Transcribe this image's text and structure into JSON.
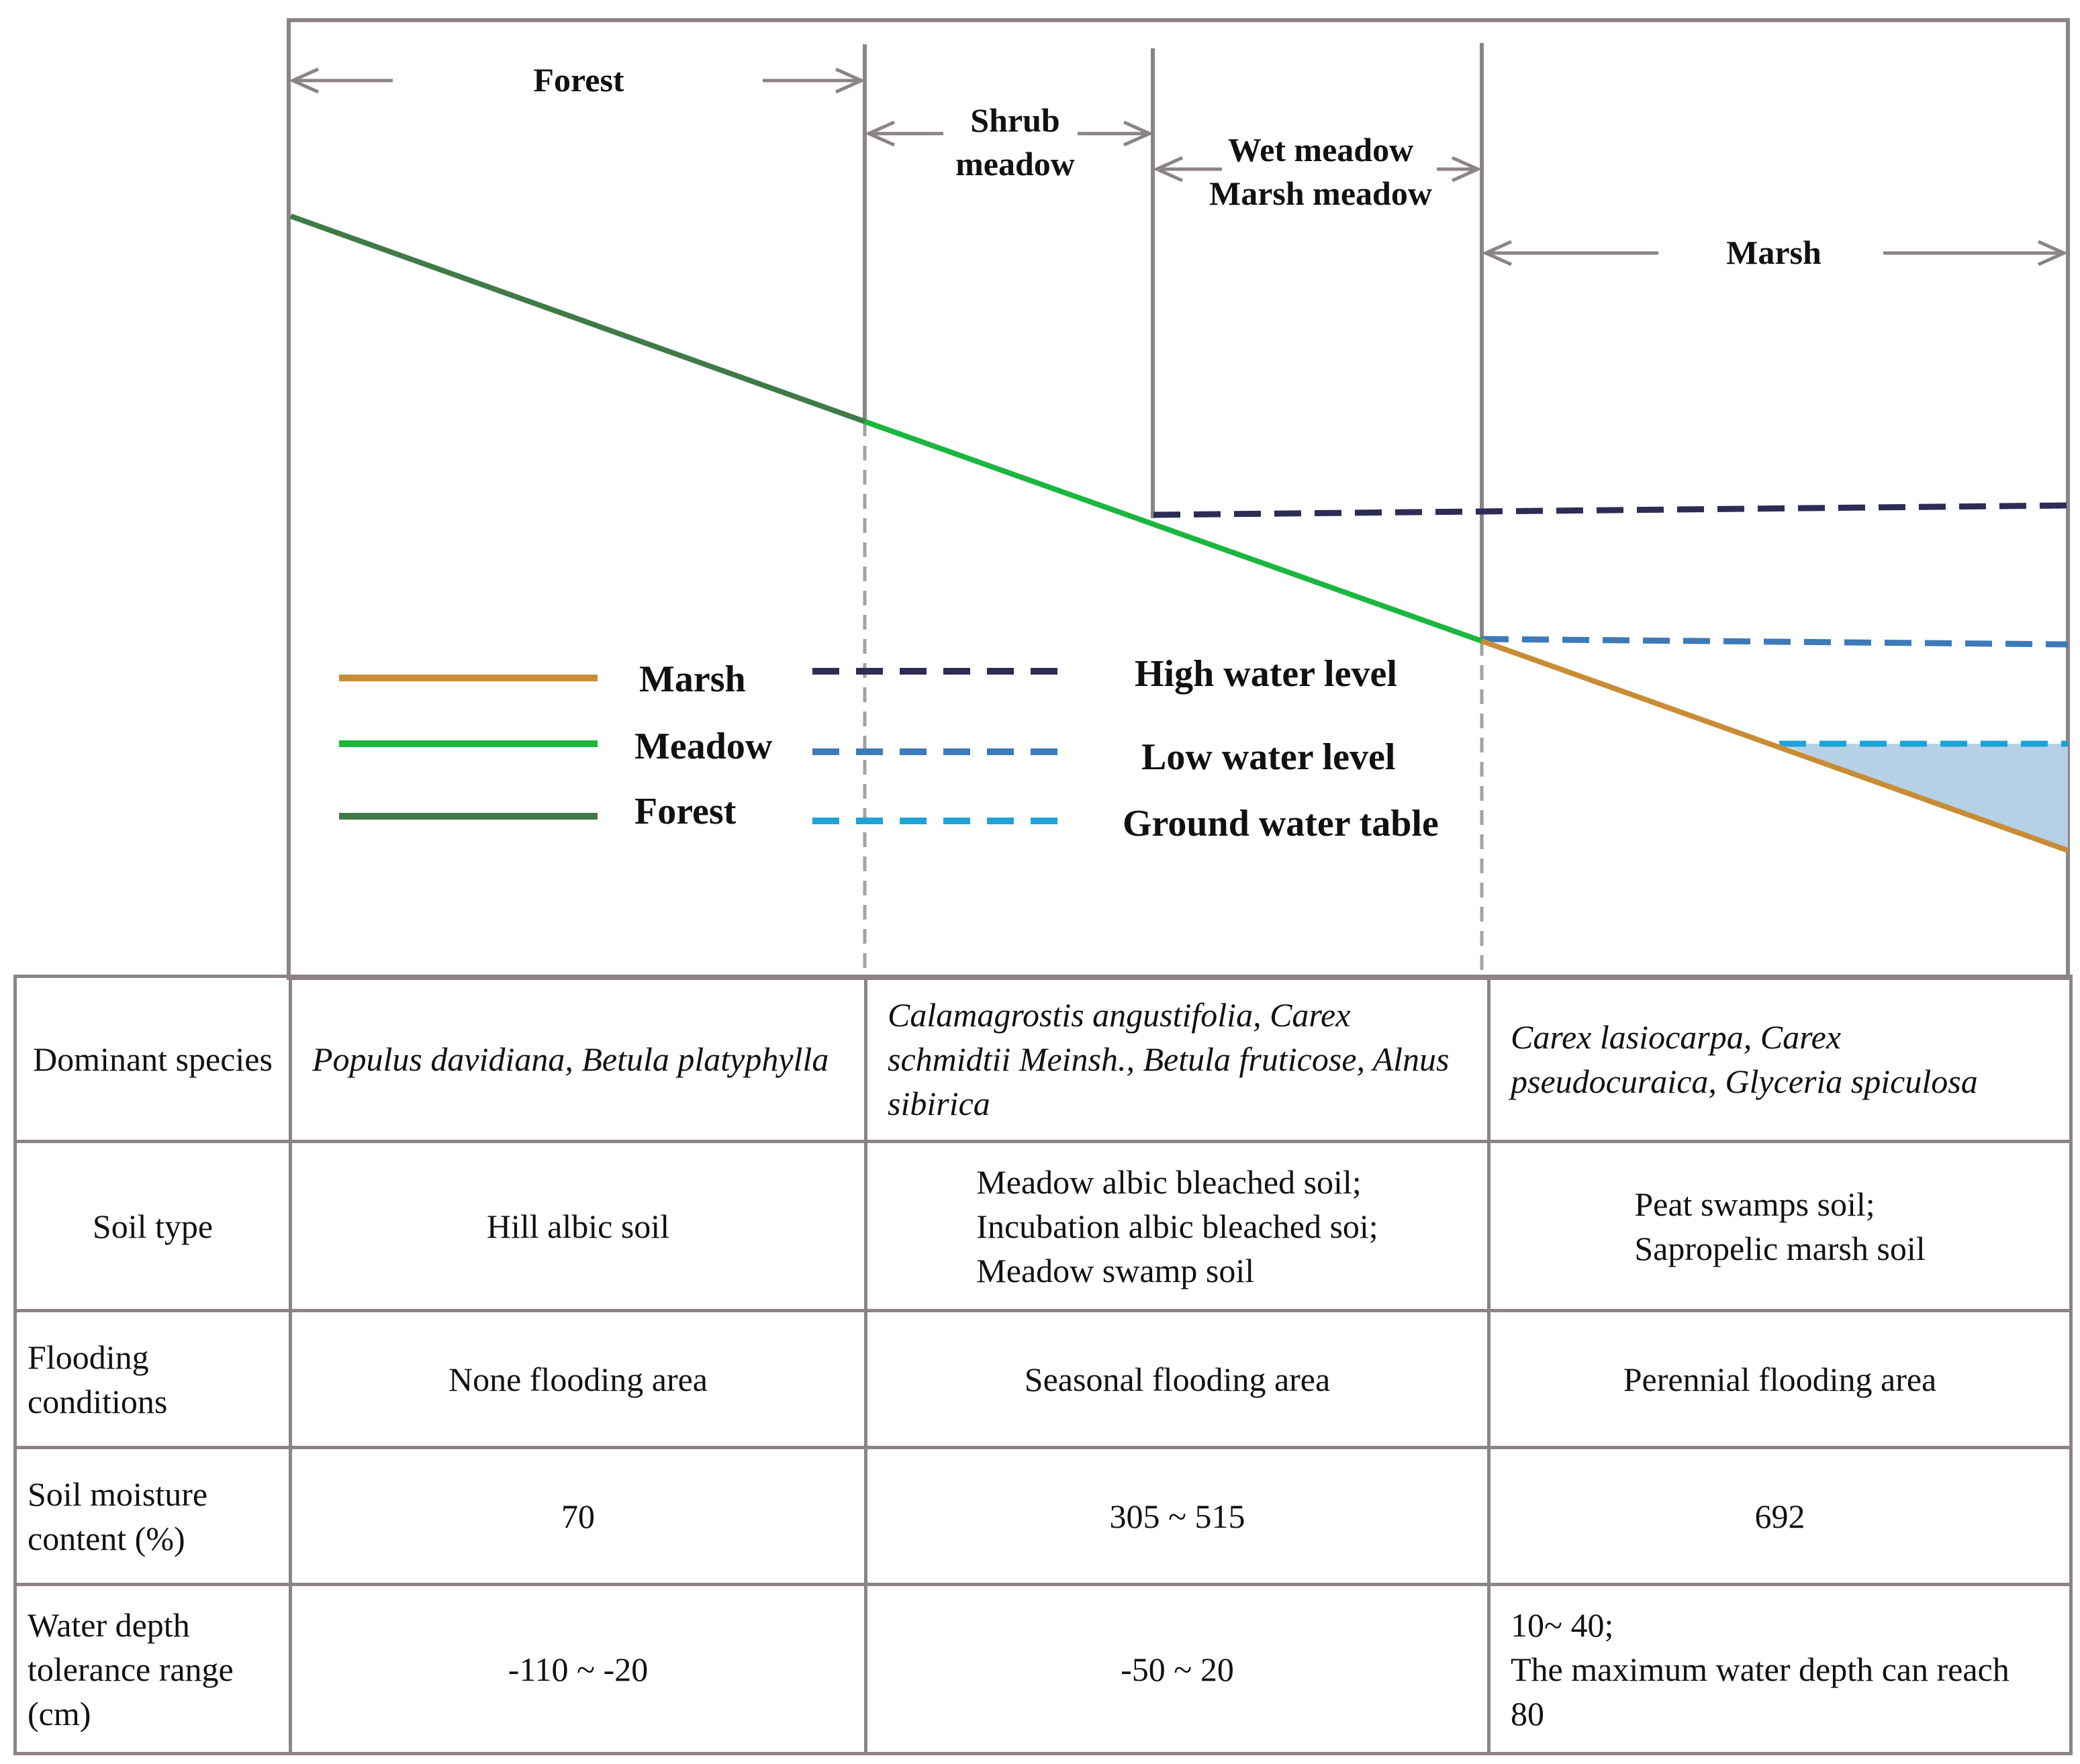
{
  "zones": {
    "forest": "Forest",
    "shrub_meadow": [
      "Shrub",
      "meadow"
    ],
    "wet_marsh_meadow": [
      "Wet meadow",
      "Marsh meadow"
    ],
    "marsh": "Marsh"
  },
  "legend": {
    "marsh": "Marsh",
    "meadow": "Meadow",
    "forest": "Forest",
    "high_water": "High water level",
    "low_water": "Low water level",
    "ground_water": "Ground water table"
  },
  "colors": {
    "frame": "#8c8384",
    "forest_line": "#3f7a47",
    "meadow_line": "#1bb63f",
    "marsh_line": "#c98c36",
    "high_water": "#2d2c55",
    "low_water": "#3e7ab8",
    "ground_water": "#1ea3d7",
    "water_fill": "#b6d1e6"
  },
  "table": {
    "rows": [
      {
        "label": "Dominant species",
        "cells": [
          "Populus davidiana, Betula platyphylla",
          "Calamagrostis angustifolia, Carex schmidtii Meinsh., Betula fruticose, Alnus sibirica",
          "Carex lasiocarpa, Carex pseudocuraica, Glyceria spiculosa"
        ]
      },
      {
        "label": "Soil type",
        "cells": [
          "Hill albic soil",
          "Meadow albic bleached soil;\nIncubation albic bleached soi;\nMeadow swamp soil",
          "Peat swamps soil;\nSapropelic marsh soil"
        ]
      },
      {
        "label": "Flooding conditions",
        "cells": [
          "None flooding area",
          "Seasonal flooding area",
          "Perennial flooding area"
        ]
      },
      {
        "label": "Soil moisture content (%)",
        "cells": [
          "70",
          "305 ~ 515",
          "692"
        ]
      },
      {
        "label": "Water depth tolerance range (cm)",
        "cells": [
          "-110 ~ -20",
          "-50 ~ 20",
          "10~ 40;\nThe maximum water depth can reach 80"
        ]
      }
    ]
  }
}
